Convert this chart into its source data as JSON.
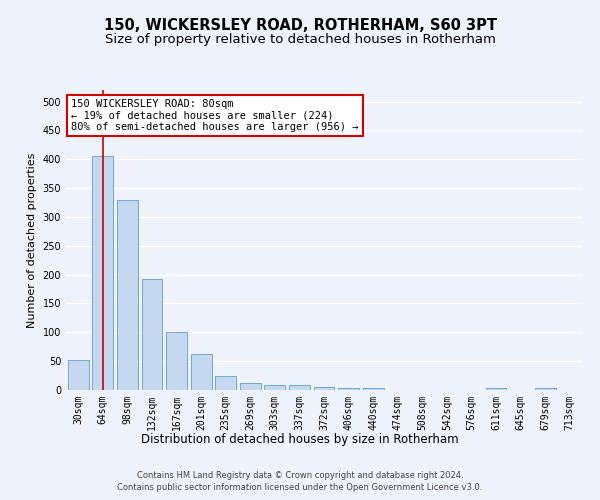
{
  "title": "150, WICKERSLEY ROAD, ROTHERHAM, S60 3PT",
  "subtitle": "Size of property relative to detached houses in Rotherham",
  "xlabel": "Distribution of detached houses by size in Rotherham",
  "ylabel": "Number of detached properties",
  "bar_color": "#c5d8f0",
  "bar_edge_color": "#6fa8d4",
  "categories": [
    "30sqm",
    "64sqm",
    "98sqm",
    "132sqm",
    "167sqm",
    "201sqm",
    "235sqm",
    "269sqm",
    "303sqm",
    "337sqm",
    "372sqm",
    "406sqm",
    "440sqm",
    "474sqm",
    "508sqm",
    "542sqm",
    "576sqm",
    "611sqm",
    "645sqm",
    "679sqm",
    "713sqm"
  ],
  "values": [
    52,
    405,
    330,
    193,
    100,
    63,
    25,
    13,
    8,
    8,
    6,
    4,
    3,
    0,
    0,
    0,
    0,
    4,
    0,
    3,
    0
  ],
  "ylim": [
    0,
    520
  ],
  "yticks": [
    0,
    50,
    100,
    150,
    200,
    250,
    300,
    350,
    400,
    450,
    500
  ],
  "property_line_x": 1.0,
  "property_line_color": "#cc0000",
  "annotation_text": "150 WICKERSLEY ROAD: 80sqm\n← 19% of detached houses are smaller (224)\n80% of semi-detached houses are larger (956) →",
  "annotation_box_color": "#ffffff",
  "annotation_box_edge_color": "#cc0000",
  "footer_line1": "Contains HM Land Registry data © Crown copyright and database right 2024.",
  "footer_line2": "Contains public sector information licensed under the Open Government Licence v3.0.",
  "background_color": "#eef2fa",
  "grid_color": "#ffffff",
  "title_fontsize": 10.5,
  "subtitle_fontsize": 9.5,
  "tick_fontsize": 7,
  "ylabel_fontsize": 8,
  "xlabel_fontsize": 8.5,
  "annotation_fontsize": 7.5,
  "footer_fontsize": 6
}
